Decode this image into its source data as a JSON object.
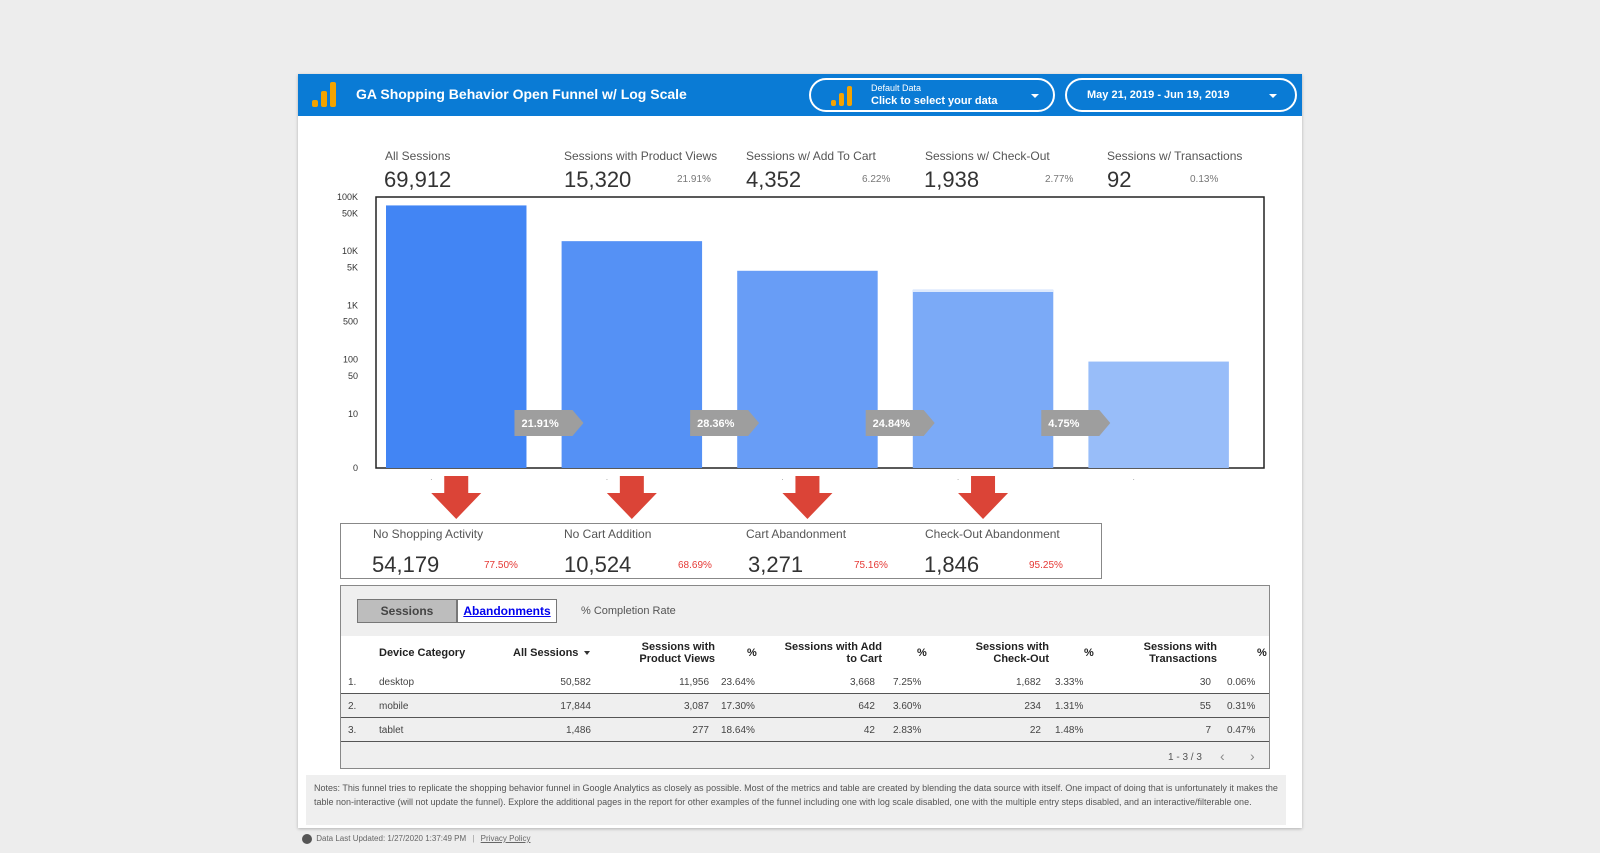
{
  "header": {
    "title": "GA Shopping Behavior Open Funnel w/ Log Scale",
    "data_source_label": "Default Data",
    "data_source_action": "Click to select your data",
    "date_range": "May 21, 2019 - Jun 19, 2019"
  },
  "kpis": [
    {
      "label": "All Sessions",
      "value": "69,912",
      "pct": ""
    },
    {
      "label": "Sessions with  Product Views",
      "value": "15,320",
      "pct": "21.91%"
    },
    {
      "label": "Sessions w/ Add To Cart",
      "value": "4,352",
      "pct": "6.22%"
    },
    {
      "label": "Sessions w/ Check-Out",
      "value": "1,938",
      "pct": "2.77%"
    },
    {
      "label": "Sessions w/ Transactions",
      "value": "92",
      "pct": "0.13%"
    }
  ],
  "chart_data": {
    "type": "bar",
    "scale": "log",
    "categories": [
      "All Sessions",
      "Sessions with Product Views",
      "Sessions w/ Add To Cart",
      "Sessions w/ Check-Out",
      "Sessions w/ Transactions"
    ],
    "values": [
      69912,
      15320,
      4352,
      1938,
      92
    ],
    "overlay_value_step4": 1846,
    "step_conversion_labels": [
      "21.91%",
      "28.36%",
      "24.84%",
      "4.75%"
    ],
    "y_ticks": [
      {
        "value": 100000,
        "label": "100K"
      },
      {
        "value": 50000,
        "label": "50K"
      },
      {
        "value": 10000,
        "label": "10K"
      },
      {
        "value": 5000,
        "label": "5K"
      },
      {
        "value": 1000,
        "label": "1K"
      },
      {
        "value": 500,
        "label": "500"
      },
      {
        "value": 100,
        "label": "100"
      },
      {
        "value": 50,
        "label": "50"
      },
      {
        "value": 10,
        "label": "10"
      },
      {
        "value": 1,
        "label": "0"
      }
    ],
    "ylim": [
      1,
      100000
    ],
    "colors": [
      "#4285f4",
      "#5591f5",
      "#689df6",
      "#7baaf7",
      "#98bdf9"
    ]
  },
  "abandonments": [
    {
      "label": "No Shopping Activity",
      "value": "54,179",
      "pct": "77.50%"
    },
    {
      "label": "No Cart Addition",
      "value": "10,524",
      "pct": "68.69%"
    },
    {
      "label": "Cart Abandonment",
      "value": "3,271",
      "pct": "75.16%"
    },
    {
      "label": "Check-Out Abandonment",
      "value": "1,846",
      "pct": "95.25%"
    }
  ],
  "colors": {
    "header_blue": "#0a7bd5",
    "arrow_red": "#db4437",
    "logo_orange": "#f4a300"
  },
  "tabs": {
    "sessions": "Sessions",
    "abandonments": "Abandonments",
    "completion_rate": "% Completion Rate"
  },
  "table": {
    "headers": {
      "device": "Device Category",
      "all_sessions": "All Sessions",
      "product_views_1": "Sessions with",
      "product_views_2": "Product Views",
      "pct": "%",
      "add_to_cart_1": "Sessions with Add",
      "add_to_cart_2": "to Cart",
      "checkout_1": "Sessions with",
      "checkout_2": "Check-Out",
      "transactions_1": "Sessions with",
      "transactions_2": "Transactions"
    },
    "rows": [
      {
        "idx": "1.",
        "device": "desktop",
        "all": "50,582",
        "pv": "11,956",
        "pv_pct": "23.64%",
        "atc": "3,668",
        "atc_pct": "7.25%",
        "co": "1,682",
        "co_pct": "3.33%",
        "tx": "30",
        "tx_pct": "0.06%"
      },
      {
        "idx": "2.",
        "device": "mobile",
        "all": "17,844",
        "pv": "3,087",
        "pv_pct": "17.30%",
        "atc": "642",
        "atc_pct": "3.60%",
        "co": "234",
        "co_pct": "1.31%",
        "tx": "55",
        "tx_pct": "0.31%"
      },
      {
        "idx": "3.",
        "device": "tablet",
        "all": "1,486",
        "pv": "277",
        "pv_pct": "18.64%",
        "atc": "42",
        "atc_pct": "2.83%",
        "co": "22",
        "co_pct": "1.48%",
        "tx": "7",
        "tx_pct": "0.47%"
      }
    ],
    "pagination": "1 - 3 / 3"
  },
  "notes": "Notes: This funnel tries to replicate the shopping behavior funnel in Google Analytics as closely as possible. Most of the metrics and table are created by blending the data source with itself. One impact of doing that is unfortunately it makes the table non-interactive (will not update the funnel). Explore the additional pages in the report for other examples of the funnel including one with log scale disabled, one with the multiple entry steps disabled, and an interactive/filterable one.",
  "footer": {
    "updated": "Data Last Updated: 1/27/2020 1:37:49 PM",
    "privacy": "Privacy Policy"
  }
}
